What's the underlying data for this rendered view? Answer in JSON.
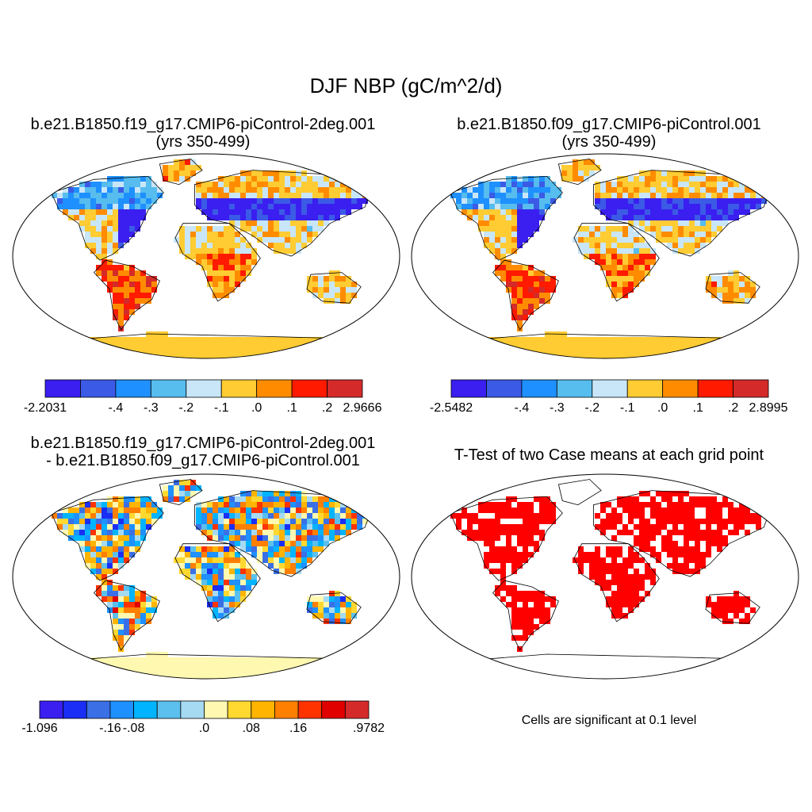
{
  "figure": {
    "title": "DJF NBP (gC/m^2/d)",
    "colors": {
      "land_outline": "#000000",
      "ocean": "#ffffff",
      "significant": "#ff0000"
    }
  },
  "panels": [
    {
      "id": "case1",
      "title_line1": "b.e21.B1850.f19_g17.CMIP6-piControl-2deg.001",
      "title_line2": "(yrs 350-499)",
      "colorbar": {
        "colors": [
          "#3a1ff0",
          "#3b5ae6",
          "#1e90ff",
          "#57bcee",
          "#c8e6f8",
          "#ffcc33",
          "#ff8c00",
          "#ff1a00",
          "#d42a2a"
        ],
        "labels": [
          "-2.2031",
          "-.4",
          "-.3",
          "-.2",
          "-.1",
          ".0",
          ".1",
          ".2",
          "2.9666"
        ]
      }
    },
    {
      "id": "case2",
      "title_line1": "b.e21.B1850.f09_g17.CMIP6-piControl.001",
      "title_line2": "(yrs 350-499)",
      "colorbar": {
        "colors": [
          "#3a1ff0",
          "#3b5ae6",
          "#1e90ff",
          "#57bcee",
          "#c8e6f8",
          "#ffcc33",
          "#ff8c00",
          "#ff1a00",
          "#d42a2a"
        ],
        "labels": [
          "-2.5482",
          "-.4",
          "-.3",
          "-.2",
          "-.1",
          ".0",
          ".1",
          ".2",
          "2.8995"
        ]
      }
    },
    {
      "id": "difference",
      "title_line1": "b.e21.B1850.f19_g17.CMIP6-piControl-2deg.001",
      "title_line2": "- b.e21.B1850.f09_g17.CMIP6-piControl.001",
      "colorbar": {
        "colors": [
          "#3a1ff0",
          "#1a2ef5",
          "#3b6fe6",
          "#1e90ff",
          "#00b4ff",
          "#5cc0ee",
          "#a6daf2",
          "#fff8b0",
          "#ffd830",
          "#ffb400",
          "#ff7f00",
          "#ff3300",
          "#e00000",
          "#d42a2a"
        ],
        "labels": [
          "-1.096",
          "-.16",
          "-.08",
          ".0",
          ".08",
          ".16",
          ".9782"
        ]
      }
    },
    {
      "id": "ttest",
      "title_line1": "T-Test of two Case means at each grid point",
      "note": "Cells are significant at 0.1 level"
    }
  ]
}
